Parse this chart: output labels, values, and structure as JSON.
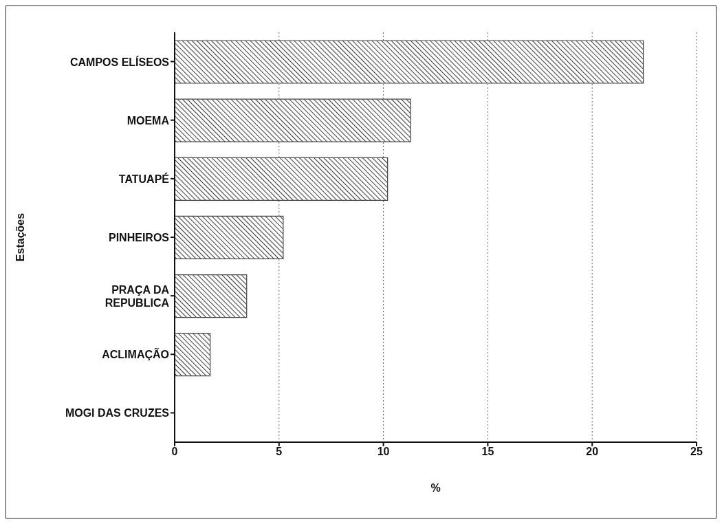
{
  "chart_data": {
    "type": "bar",
    "orientation": "horizontal",
    "ylabel": "Estações",
    "xlabel": "%",
    "categories": [
      "CAMPOS ELÍSEOS",
      "MOEMA",
      "TATUAPÉ",
      "PINHEIROS",
      "PRAÇA DA REPUBLICA",
      "ACLIMAÇÃO",
      "MOGI DAS CRUZES"
    ],
    "values": [
      22.45,
      11.3,
      10.2,
      5.2,
      3.45,
      1.7,
      0
    ],
    "color": "#444444",
    "xlim": [
      0,
      25
    ],
    "xticks": [
      0,
      5,
      10,
      15,
      20,
      25
    ],
    "grid": "x"
  }
}
